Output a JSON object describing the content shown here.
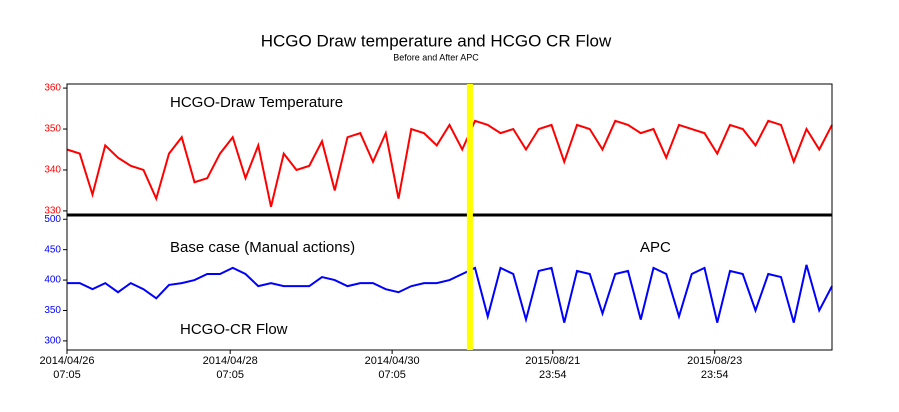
{
  "title": "HCGO  Draw temperature and HCGO  CR Flow",
  "subtitle": "Before and After APC",
  "chart_data": [
    {
      "type": "line",
      "annotations": [
        "HCGO-Draw Temperature"
      ],
      "marker": {
        "x": 63.2,
        "color": "#ffff00"
      },
      "xlim": [
        0,
        120
      ],
      "ylim": [
        329,
        361
      ],
      "yticks": [
        330,
        340,
        350,
        360
      ],
      "tick_color": "#ff0000",
      "x": [
        0,
        2,
        4,
        6,
        8,
        10,
        12,
        14,
        16,
        18,
        20,
        22,
        24,
        26,
        28,
        30,
        32,
        34,
        36,
        38,
        40,
        42,
        44,
        46,
        48,
        50,
        52,
        54,
        56,
        58,
        60,
        62,
        64,
        66,
        68,
        70,
        72,
        74,
        76,
        78,
        80,
        82,
        84,
        86,
        88,
        90,
        92,
        94,
        96,
        98,
        100,
        102,
        104,
        106,
        108,
        110,
        112,
        114,
        116,
        118,
        120
      ],
      "series": [
        {
          "name": "HCGO-Draw Temperature",
          "color": "#ff0000",
          "values": [
            345,
            344,
            334,
            346,
            343,
            341,
            340,
            333,
            344,
            348,
            337,
            338,
            344,
            348,
            338,
            346,
            331,
            344,
            340,
            341,
            347,
            335,
            348,
            349,
            342,
            349,
            333,
            350,
            349,
            346,
            351,
            345,
            352,
            351,
            349,
            350,
            345,
            350,
            351,
            342,
            351,
            350,
            345,
            352,
            351,
            349,
            350,
            343,
            351,
            350,
            349,
            344,
            351,
            350,
            346,
            352,
            351,
            342,
            350,
            345,
            351
          ]
        }
      ]
    },
    {
      "type": "line",
      "annotations": [
        "Base case  (Manual actions)",
        "APC",
        "HCGO-CR Flow"
      ],
      "xlim": [
        0,
        120
      ],
      "xticks": [
        {
          "value": 0,
          "label": "2014/04/26\n07:05"
        },
        {
          "value": 25.6,
          "label": "2014/04/28\n07:05"
        },
        {
          "value": 51,
          "label": "2014/04/30\n07:05"
        },
        {
          "value": 76.2,
          "label": "2015/08/21\n23:54"
        },
        {
          "value": 101.6,
          "label": "2015/08/23\n23:54"
        }
      ],
      "ylim": [
        285,
        507
      ],
      "yticks": [
        300,
        350,
        400,
        450,
        500
      ],
      "tick_color": "#0000ff",
      "x": [
        0,
        2,
        4,
        6,
        8,
        10,
        12,
        14,
        16,
        18,
        20,
        22,
        24,
        26,
        28,
        30,
        32,
        34,
        36,
        38,
        40,
        42,
        44,
        46,
        48,
        50,
        52,
        54,
        56,
        58,
        60,
        62,
        64,
        66,
        68,
        70,
        72,
        74,
        76,
        78,
        80,
        82,
        84,
        86,
        88,
        90,
        92,
        94,
        96,
        98,
        100,
        102,
        104,
        106,
        108,
        110,
        112,
        114,
        116,
        118,
        120
      ],
      "series": [
        {
          "name": "HCGO-CR Flow",
          "color": "#0000ff",
          "values": [
            395,
            395,
            385,
            395,
            380,
            395,
            385,
            370,
            392,
            395,
            400,
            410,
            410,
            420,
            410,
            390,
            395,
            390,
            390,
            390,
            405,
            400,
            390,
            395,
            395,
            385,
            380,
            390,
            395,
            395,
            400,
            410,
            420,
            340,
            420,
            410,
            335,
            415,
            420,
            330,
            415,
            410,
            345,
            410,
            415,
            335,
            420,
            410,
            340,
            410,
            420,
            330,
            415,
            410,
            350,
            410,
            405,
            330,
            425,
            350,
            390
          ]
        }
      ]
    }
  ]
}
